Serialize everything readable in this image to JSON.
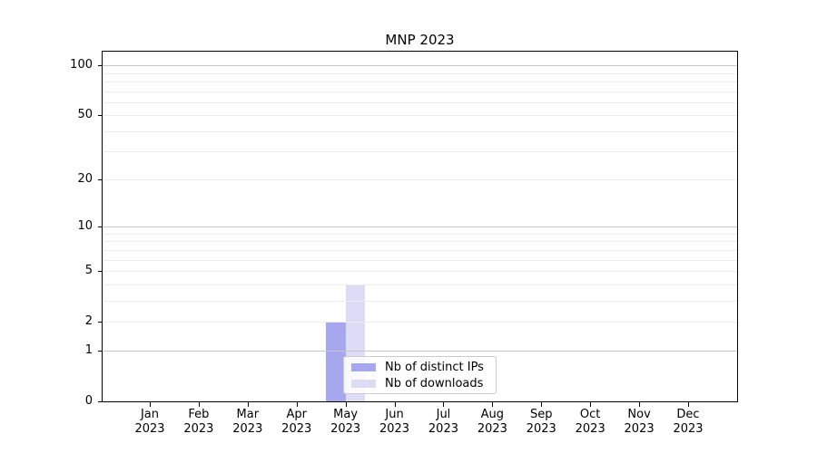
{
  "chart_data": {
    "type": "bar",
    "title": "MNP 2023",
    "categories": [
      "Jan",
      "Feb",
      "Mar",
      "Apr",
      "May",
      "Jun",
      "Jul",
      "Aug",
      "Sep",
      "Oct",
      "Nov",
      "Dec"
    ],
    "year": "2023",
    "series": [
      {
        "name": "Nb of distinct IPs",
        "color": "#a7a7f0",
        "values": [
          0,
          0,
          0,
          0,
          2,
          0,
          0,
          0,
          0,
          0,
          0,
          0
        ]
      },
      {
        "name": "Nb of downloads",
        "color": "#dcdcf7",
        "values": [
          0,
          0,
          0,
          0,
          4,
          0,
          0,
          0,
          0,
          0,
          0,
          0
        ]
      }
    ],
    "yscale": "log1p",
    "yticks": [
      0,
      1,
      2,
      5,
      10,
      20,
      50,
      100
    ],
    "ytick_major_grid": [
      1,
      10,
      100
    ],
    "ytick_minor_grid": [
      2,
      3,
      4,
      5,
      6,
      7,
      8,
      9,
      20,
      30,
      40,
      50,
      60,
      70,
      80,
      90
    ],
    "ylim": [
      0,
      120
    ],
    "xlabel": "",
    "ylabel": "",
    "grid": "on",
    "legend_position": "lower-center"
  },
  "colors": {
    "grid_minor": "#ededed",
    "grid_major": "#c6c6c6",
    "spine": "#000000",
    "legend_border": "#cccccc",
    "legend_background": "rgba(255,255,255,0.85)",
    "background": "#ffffff"
  }
}
